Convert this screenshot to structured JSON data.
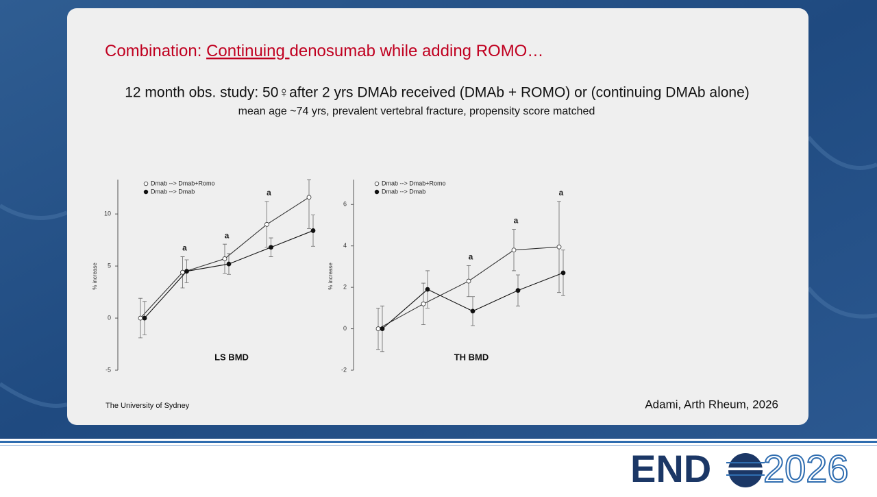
{
  "slide": {
    "title_parts": [
      "Combination: ",
      "Continuing ",
      "denosumab while adding ROMO…"
    ],
    "subtitle": "12 month obs. study: 50♀after 2 yrs DMAb received (DMAb + ROMO) or (continuing DMAb alone)",
    "detail": "mean age ~74 yrs, prevalent vertebral fracture, propensity score matched",
    "footer": "The University of Sydney",
    "citation": "Adami, Arth Rheum, 2026",
    "logo": {
      "prefix": "END",
      "suffix": "2026"
    }
  },
  "chart_data": [
    {
      "type": "line",
      "title": "LS BMD",
      "ylabel": "% increase",
      "categories": [
        null,
        null,
        null,
        null,
        null
      ],
      "annotations": [
        null,
        "a",
        "a",
        "a",
        null
      ],
      "ylim": [
        -5,
        13.3
      ],
      "yticks": [
        -5,
        0,
        5,
        10
      ],
      "series": [
        {
          "name": "Dmab --> Dmab+Romo",
          "marker": "open",
          "color": "#333333",
          "values": [
            0,
            4.4,
            5.7,
            9.0,
            11.6
          ],
          "errors": [
            1.9,
            1.5,
            1.4,
            2.2,
            3.0
          ]
        },
        {
          "name": "Dmab --> Dmab",
          "marker": "filled",
          "color": "#111111",
          "values": [
            0,
            4.5,
            5.2,
            6.8,
            8.4
          ],
          "errors": [
            1.6,
            1.1,
            1.0,
            0.9,
            1.5
          ]
        }
      ]
    },
    {
      "type": "line",
      "title": "TH BMD",
      "ylabel": "% increase",
      "categories": [
        null,
        null,
        null,
        null,
        null
      ],
      "annotations": [
        null,
        null,
        "a",
        "a",
        "a"
      ],
      "ylim": [
        -2,
        7.2
      ],
      "yticks": [
        -2,
        0,
        2,
        4,
        6
      ],
      "series": [
        {
          "name": "Dmab --> Dmab+Romo",
          "marker": "open",
          "color": "#333333",
          "values": [
            0,
            1.2,
            2.3,
            3.8,
            3.95
          ],
          "errors": [
            1.0,
            1.0,
            0.75,
            1.0,
            2.2
          ]
        },
        {
          "name": "Dmab --> Dmab",
          "marker": "filled",
          "color": "#111111",
          "values": [
            0,
            1.9,
            0.85,
            1.85,
            2.7
          ],
          "errors": [
            1.1,
            0.9,
            0.7,
            0.75,
            1.1
          ]
        }
      ]
    }
  ]
}
